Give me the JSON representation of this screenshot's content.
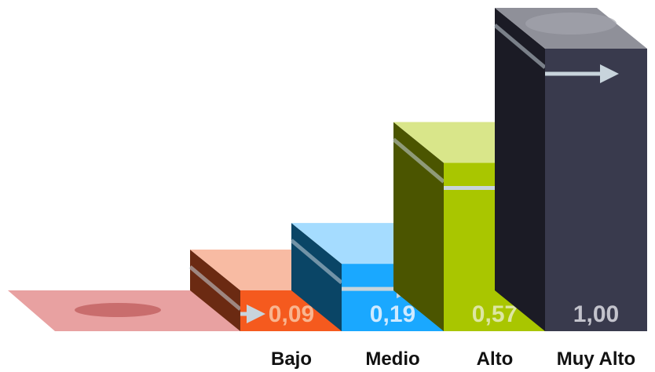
{
  "chart_data": {
    "type": "bar",
    "categories": [
      "Bajo",
      "Medio",
      "Alto",
      "Muy Alto"
    ],
    "values": [
      0.09,
      0.19,
      0.57,
      1.0
    ],
    "value_labels": [
      "0,09",
      "0,19",
      "0,57",
      "1,00"
    ],
    "title": "",
    "xlabel": "",
    "ylabel": "",
    "ylim": [
      0,
      1.0
    ],
    "grid": false,
    "legend": "none",
    "colors": {
      "bars_front": [
        "#f55a1e",
        "#1aa8ff",
        "#a9c600",
        "#393a4d"
      ],
      "bars_top": [
        "#f8bba3",
        "#a5dcff",
        "#d9e68a",
        "#8f9099"
      ],
      "bars_side": [
        "#6b2a12",
        "#0a4566",
        "#4b5500",
        "#1b1b25"
      ],
      "value_labels": [
        "#f8b590",
        "#cfeaff",
        "#dde6a2",
        "#c3c3cc"
      ],
      "floor": "#e8a1a1",
      "floor_ellipse": "#c96d6d",
      "arrow": "#c8d4dc"
    }
  }
}
